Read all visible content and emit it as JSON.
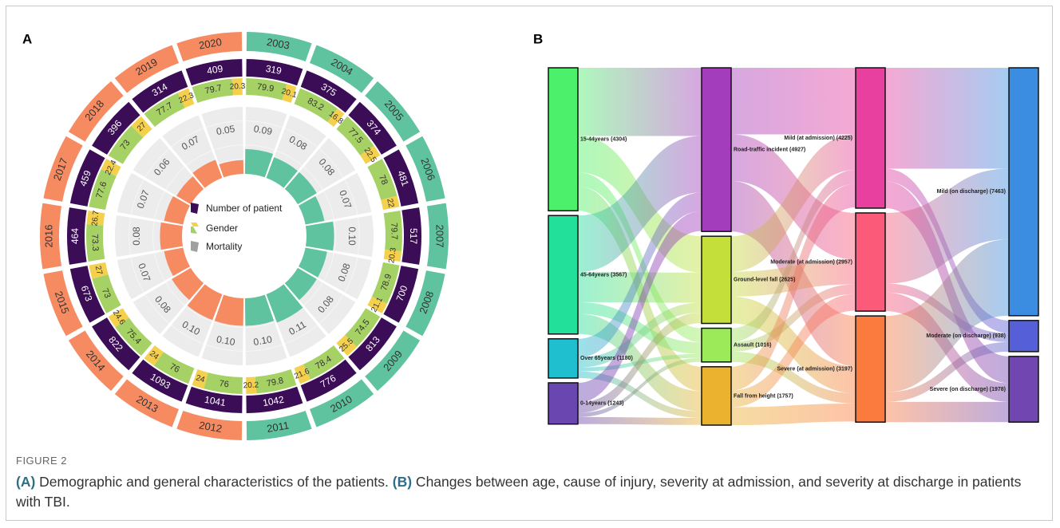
{
  "panels": [
    "A",
    "B"
  ],
  "chart_data": [
    {
      "type": "circular-bar",
      "categories": [
        "2003",
        "2004",
        "2005",
        "2006",
        "2007",
        "2008",
        "2009",
        "2010",
        "2011",
        "2012",
        "2013",
        "2014",
        "2015",
        "2016",
        "2017",
        "2018",
        "2019",
        "2020"
      ],
      "colors": [
        "#5fc3a0",
        "#5fc3a0",
        "#5fc3a0",
        "#5fc3a0",
        "#5fc3a0",
        "#5fc3a0",
        "#5fc3a0",
        "#5fc3a0",
        "#5fc3a0",
        "#f68b62",
        "#f68b62",
        "#f68b62",
        "#f68b62",
        "#f68b62",
        "#f68b62",
        "#f68b62",
        "#f68b62",
        "#f68b62"
      ],
      "patients": {
        "name": "Number of patient",
        "color": "#3c0d57",
        "values": [
          319,
          375,
          374,
          481,
          517,
          700,
          813,
          776,
          1042,
          1041,
          1093,
          822,
          673,
          464,
          459,
          396,
          314,
          409
        ]
      },
      "gender": {
        "name": "Gender",
        "series": [
          {
            "color": "#a6d164",
            "values": [
              79.9,
              83.2,
              77.5,
              78,
              79.7,
              78.9,
              74.5,
              78.4,
              79.8,
              76,
              76,
              75.4,
              73,
              73.3,
              77.6,
              73,
              77.7,
              79.7
            ]
          },
          {
            "color": "#f5d04c",
            "values": [
              20.1,
              16.8,
              22.5,
              22,
              20.3,
              21.1,
              25.5,
              21.6,
              20.2,
              24,
              24,
              24.6,
              27,
              26.7,
              22.4,
              27,
              22.3,
              20.3
            ]
          }
        ]
      },
      "mortality": {
        "name": "Mortality",
        "color": "#a0a0a0",
        "values": [
          0.09,
          0.08,
          0.08,
          0.07,
          0.1,
          0.08,
          0.08,
          0.11,
          0.1,
          0.1,
          0.1,
          0.08,
          0.07,
          0.08,
          0.07,
          0.06,
          0.07,
          0.05
        ],
        "value_labels": [
          "0.09",
          "0.08",
          "0.08",
          "0.07",
          "0.10",
          "0.08",
          "0.08",
          "0.11",
          "0.10",
          "0.10",
          "0.10",
          "0.08",
          "0.07",
          "0.08",
          "0.07",
          "0.06",
          "0.07",
          "0.05"
        ]
      }
    },
    {
      "type": "sankey",
      "columns": [
        [
          {
            "label": "15-44years (4304)",
            "value": 4304,
            "color": "#4cf06a"
          },
          {
            "label": "45-64years (3567)",
            "value": 3567,
            "color": "#22e09a"
          },
          {
            "label": "Over 65years (1180)",
            "value": 1180,
            "color": "#1fbfcf"
          },
          {
            "label": "0-14years (1243)",
            "value": 1243,
            "color": "#6a46b0"
          }
        ],
        [
          {
            "label": "Road-traffic incident (4927)",
            "value": 4927,
            "color": "#a43dbb"
          },
          {
            "label": "Ground-level fall (2625)",
            "value": 2625,
            "color": "#c4df3a"
          },
          {
            "label": "Assault (1016)",
            "value": 1016,
            "color": "#9cea5a"
          },
          {
            "label": "Fall from height (1757)",
            "value": 1757,
            "color": "#eab22e"
          }
        ],
        [
          {
            "label": "Mild (at admission) (4225)",
            "value": 4225,
            "color": "#e8409e"
          },
          {
            "label": "Moderate (at admission) (2957)",
            "value": 2957,
            "color": "#fb5a78"
          },
          {
            "label": "Severe (at admission) (3197)",
            "value": 3197,
            "color": "#fb7a3d"
          }
        ],
        [
          {
            "label": "Mild (on discharge) (7463)",
            "value": 7463,
            "color": "#3a8de0"
          },
          {
            "label": "Moderate (on discharge) (938)",
            "value": 938,
            "color": "#5560d8"
          },
          {
            "label": "Severe (on discharge) (1978)",
            "value": 1978,
            "color": "#7146b0"
          }
        ]
      ]
    }
  ],
  "caption": {
    "label": "FIGURE 2",
    "a_tag": "(A)",
    "a_text": " Demographic and general characteristics of the patients. ",
    "b_tag": "(B)",
    "b_text": " Changes between age, cause of injury, severity at admission, and severity at discharge in patients with TBI."
  }
}
